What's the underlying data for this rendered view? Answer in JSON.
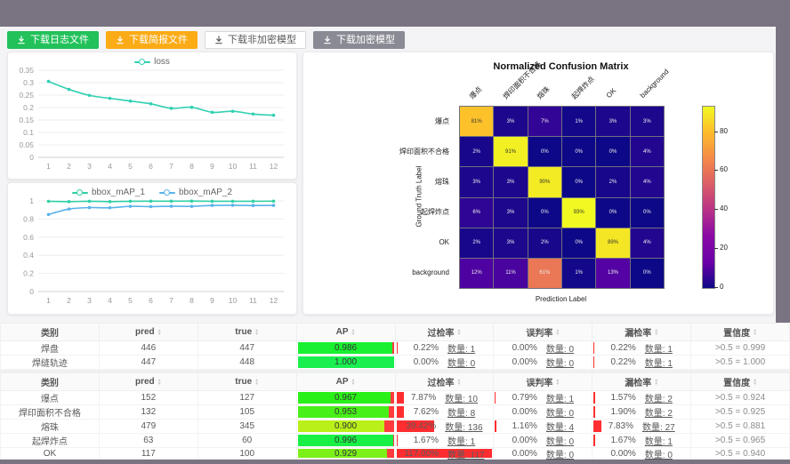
{
  "colors": {
    "frame": "#7a7382",
    "content_bg": "#f4f4f6",
    "accent_teal": "#30d0b2",
    "accent_blue": "#58b2e9",
    "green_button": "#22c15a",
    "orange_button": "#fbab15",
    "gray_button": "#8a8a94",
    "bar_red": "#ff2d30"
  },
  "toolbar": {
    "buttons": [
      {
        "label": "下载日志文件",
        "variant": "green"
      },
      {
        "label": "下载简报文件",
        "variant": "orange"
      },
      {
        "label": "下载非加密模型",
        "variant": "plain"
      },
      {
        "label": "下载加密模型",
        "variant": "gray"
      }
    ]
  },
  "chart_data": [
    {
      "id": "loss",
      "type": "line",
      "legend_position": "top",
      "x": [
        1,
        2,
        3,
        4,
        5,
        6,
        7,
        8,
        9,
        10,
        11,
        12
      ],
      "ylim": [
        0,
        0.35
      ],
      "ytick_values": [
        0,
        0.05,
        0.1,
        0.15,
        0.2,
        0.25,
        0.3,
        0.35
      ],
      "ytick_labels": [
        "0",
        "0.05",
        "0.1",
        "0.15",
        "0.2",
        "0.25",
        "0.3",
        "0.35"
      ],
      "series": [
        {
          "name": "loss",
          "color": "#30d0b2",
          "values": [
            0.305,
            0.273,
            0.249,
            0.237,
            0.226,
            0.215,
            0.197,
            0.201,
            0.181,
            0.185,
            0.174,
            0.169
          ]
        }
      ]
    },
    {
      "id": "bbox_map",
      "type": "line",
      "legend_position": "top",
      "x": [
        1,
        2,
        3,
        4,
        5,
        6,
        7,
        8,
        9,
        10,
        11,
        12
      ],
      "ylim": [
        0,
        1
      ],
      "ytick_values": [
        0,
        0.2,
        0.4,
        0.6,
        0.8,
        1
      ],
      "ytick_labels": [
        "0",
        "0.2",
        "0.4",
        "0.6",
        "0.8",
        "1"
      ],
      "series": [
        {
          "name": "bbox_mAP_1",
          "color": "#30d0a6",
          "values": [
            0.995,
            0.992,
            0.996,
            0.992,
            0.996,
            0.997,
            0.997,
            0.998,
            0.996,
            0.996,
            0.996,
            0.997
          ]
        },
        {
          "name": "bbox_mAP_2",
          "color": "#58b2e9",
          "values": [
            0.85,
            0.91,
            0.926,
            0.924,
            0.94,
            0.937,
            0.941,
            0.94,
            0.95,
            0.952,
            0.949,
            0.95
          ]
        }
      ]
    },
    {
      "id": "confusion_matrix",
      "type": "heatmap",
      "title": "Normalized Confusion Matrix",
      "xlabel": "Prediction Label",
      "ylabel": "Ground Truth Label",
      "labels": [
        "爆点",
        "焊印面积不合格",
        "熔珠",
        "起焊炸点",
        "OK",
        "background"
      ],
      "unit": "%",
      "vmin": 0,
      "vmax": 93,
      "colorbar_ticks": [
        0,
        20,
        40,
        60,
        80
      ],
      "matrix": [
        [
          81,
          3,
          7,
          1,
          3,
          3
        ],
        [
          2,
          91,
          0,
          0,
          0,
          4
        ],
        [
          3,
          3,
          90,
          0,
          2,
          4
        ],
        [
          6,
          3,
          0,
          93,
          0,
          0
        ],
        [
          2,
          3,
          2,
          0,
          89,
          4
        ],
        [
          12,
          11,
          61,
          1,
          13,
          0
        ]
      ]
    }
  ],
  "tables": [
    {
      "headers": [
        {
          "label": "类别",
          "sortable": false
        },
        {
          "label": "pred",
          "sortable": true
        },
        {
          "label": "true",
          "sortable": true
        },
        {
          "label": "AP",
          "sortable": true
        },
        {
          "label": "过检率",
          "sortable": true
        },
        {
          "label": "误判率",
          "sortable": true
        },
        {
          "label": "漏检率",
          "sortable": true
        },
        {
          "label": "置信度",
          "sortable": true
        }
      ],
      "rows": [
        {
          "cls": "焊盘",
          "pred": "446",
          "true": "447",
          "ap": "0.986",
          "over": {
            "pct": "0.22%",
            "cnt": "数量: 1"
          },
          "mis": {
            "pct": "0.00%",
            "cnt": "数量: 0"
          },
          "miss": {
            "pct": "0.22%",
            "cnt": "数量: 1"
          },
          "conf": ">0.5 = 0.999"
        },
        {
          "cls": "焊缝轨迹",
          "pred": "447",
          "true": "448",
          "ap": "1.000",
          "over": {
            "pct": "0.00%",
            "cnt": "数量: 0"
          },
          "mis": {
            "pct": "0.00%",
            "cnt": "数量: 0"
          },
          "miss": {
            "pct": "0.22%",
            "cnt": "数量: 1"
          },
          "conf": ">0.5 = 1.000"
        }
      ]
    },
    {
      "headers": [
        {
          "label": "类别",
          "sortable": false
        },
        {
          "label": "pred",
          "sortable": true
        },
        {
          "label": "true",
          "sortable": true
        },
        {
          "label": "AP",
          "sortable": true
        },
        {
          "label": "过检率",
          "sortable": true
        },
        {
          "label": "误判率",
          "sortable": true
        },
        {
          "label": "漏检率",
          "sortable": true
        },
        {
          "label": "置信度",
          "sortable": true
        }
      ],
      "rows": [
        {
          "cls": "爆点",
          "pred": "152",
          "true": "127",
          "ap": "0.967",
          "over": {
            "pct": "7.87%",
            "cnt": "数量: 10"
          },
          "mis": {
            "pct": "0.79%",
            "cnt": "数量: 1"
          },
          "miss": {
            "pct": "1.57%",
            "cnt": "数量: 2"
          },
          "conf": ">0.5 = 0.924"
        },
        {
          "cls": "焊印面积不合格",
          "pred": "132",
          "true": "105",
          "ap": "0.953",
          "over": {
            "pct": "7.62%",
            "cnt": "数量: 8"
          },
          "mis": {
            "pct": "0.00%",
            "cnt": "数量: 0"
          },
          "miss": {
            "pct": "1.90%",
            "cnt": "数量: 2"
          },
          "conf": ">0.5 = 0.925"
        },
        {
          "cls": "熔珠",
          "pred": "479",
          "true": "345",
          "ap": "0.900",
          "over": {
            "pct": "39.42%",
            "cnt": "数量: 136"
          },
          "mis": {
            "pct": "1.16%",
            "cnt": "数量: 4"
          },
          "miss": {
            "pct": "7.83%",
            "cnt": "数量: 27"
          },
          "conf": ">0.5 = 0.881"
        },
        {
          "cls": "起焊炸点",
          "pred": "63",
          "true": "60",
          "ap": "0.996",
          "over": {
            "pct": "1.67%",
            "cnt": "数量: 1"
          },
          "mis": {
            "pct": "0.00%",
            "cnt": "数量: 0"
          },
          "miss": {
            "pct": "1.67%",
            "cnt": "数量: 1"
          },
          "conf": ">0.5 = 0.965"
        },
        {
          "cls": "OK",
          "pred": "117",
          "true": "100",
          "ap": "0.929",
          "over": {
            "pct": "117.00%",
            "cnt": "数量: 117"
          },
          "mis": {
            "pct": "0.00%",
            "cnt": "数量: 0"
          },
          "miss": {
            "pct": "0.00%",
            "cnt": "数量: 0"
          },
          "conf": ">0.5 = 0.940"
        }
      ]
    }
  ]
}
